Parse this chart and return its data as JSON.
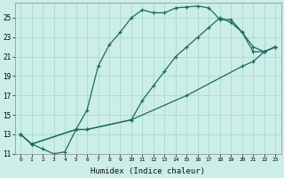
{
  "xlabel": "Humidex (Indice chaleur)",
  "bg_color": "#cceee8",
  "grid_color": "#aad8d0",
  "line_color": "#1a6b60",
  "xlim": [
    -0.5,
    23.5
  ],
  "ylim": [
    11,
    26.5
  ],
  "xticks": [
    0,
    1,
    2,
    3,
    4,
    5,
    6,
    7,
    8,
    9,
    10,
    11,
    12,
    13,
    14,
    15,
    16,
    17,
    18,
    19,
    20,
    21,
    22,
    23
  ],
  "yticks": [
    11,
    13,
    15,
    17,
    19,
    21,
    23,
    25
  ],
  "curve1_x": [
    0,
    1,
    2,
    3,
    4,
    5,
    6,
    7,
    8,
    9,
    10,
    11,
    12,
    13,
    14,
    15,
    16,
    17,
    18,
    19,
    20,
    21,
    22,
    23
  ],
  "curve1_y": [
    13.0,
    12.0,
    11.5,
    11.0,
    11.2,
    13.5,
    15.5,
    20.0,
    22.2,
    23.5,
    25.0,
    25.8,
    25.5,
    25.5,
    26.0,
    26.1,
    26.2,
    26.0,
    24.8,
    24.8,
    23.5,
    22.0,
    21.5,
    22.0
  ],
  "curve2_x": [
    0,
    1,
    5,
    6,
    10,
    11,
    12,
    13,
    14,
    15,
    16,
    17,
    18,
    19,
    20,
    21,
    22,
    23
  ],
  "curve2_y": [
    13.0,
    12.0,
    13.5,
    13.5,
    14.5,
    16.5,
    18.0,
    19.5,
    21.0,
    22.0,
    23.0,
    24.0,
    25.0,
    24.5,
    23.5,
    21.5,
    21.5,
    22.0
  ],
  "curve3_x": [
    0,
    1,
    5,
    6,
    10,
    15,
    20,
    21,
    22,
    23
  ],
  "curve3_y": [
    13.0,
    12.0,
    13.5,
    13.5,
    14.5,
    17.0,
    20.0,
    20.5,
    21.5,
    22.0
  ]
}
